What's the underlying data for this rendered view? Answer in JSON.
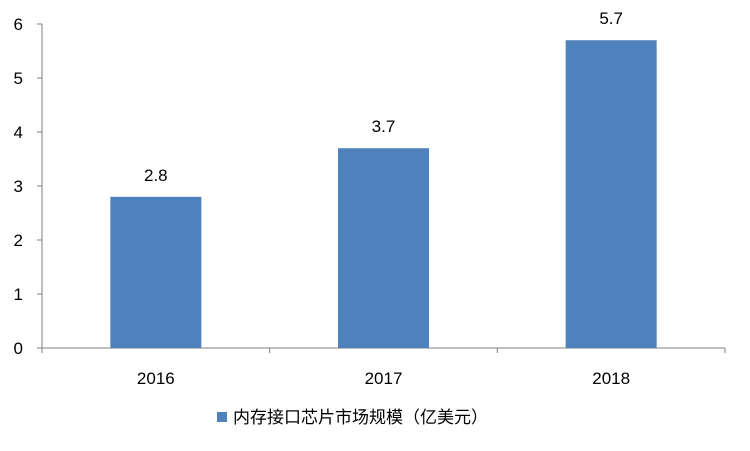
{
  "chart_data": {
    "type": "bar",
    "categories": [
      "2016",
      "2017",
      "2018"
    ],
    "series": [
      {
        "name": "内存接口芯片市场规模（亿美元）",
        "values": [
          2.8,
          3.7,
          5.7
        ],
        "color": "#4F81BD"
      }
    ],
    "data_labels": [
      "2.8",
      "3.7",
      "5.7"
    ],
    "ylim": [
      0,
      6
    ],
    "yticks": [
      "0",
      "1",
      "2",
      "3",
      "4",
      "5",
      "6"
    ],
    "grid": false,
    "legend_position": "bottom",
    "axis_color": "#7F7F7F"
  }
}
